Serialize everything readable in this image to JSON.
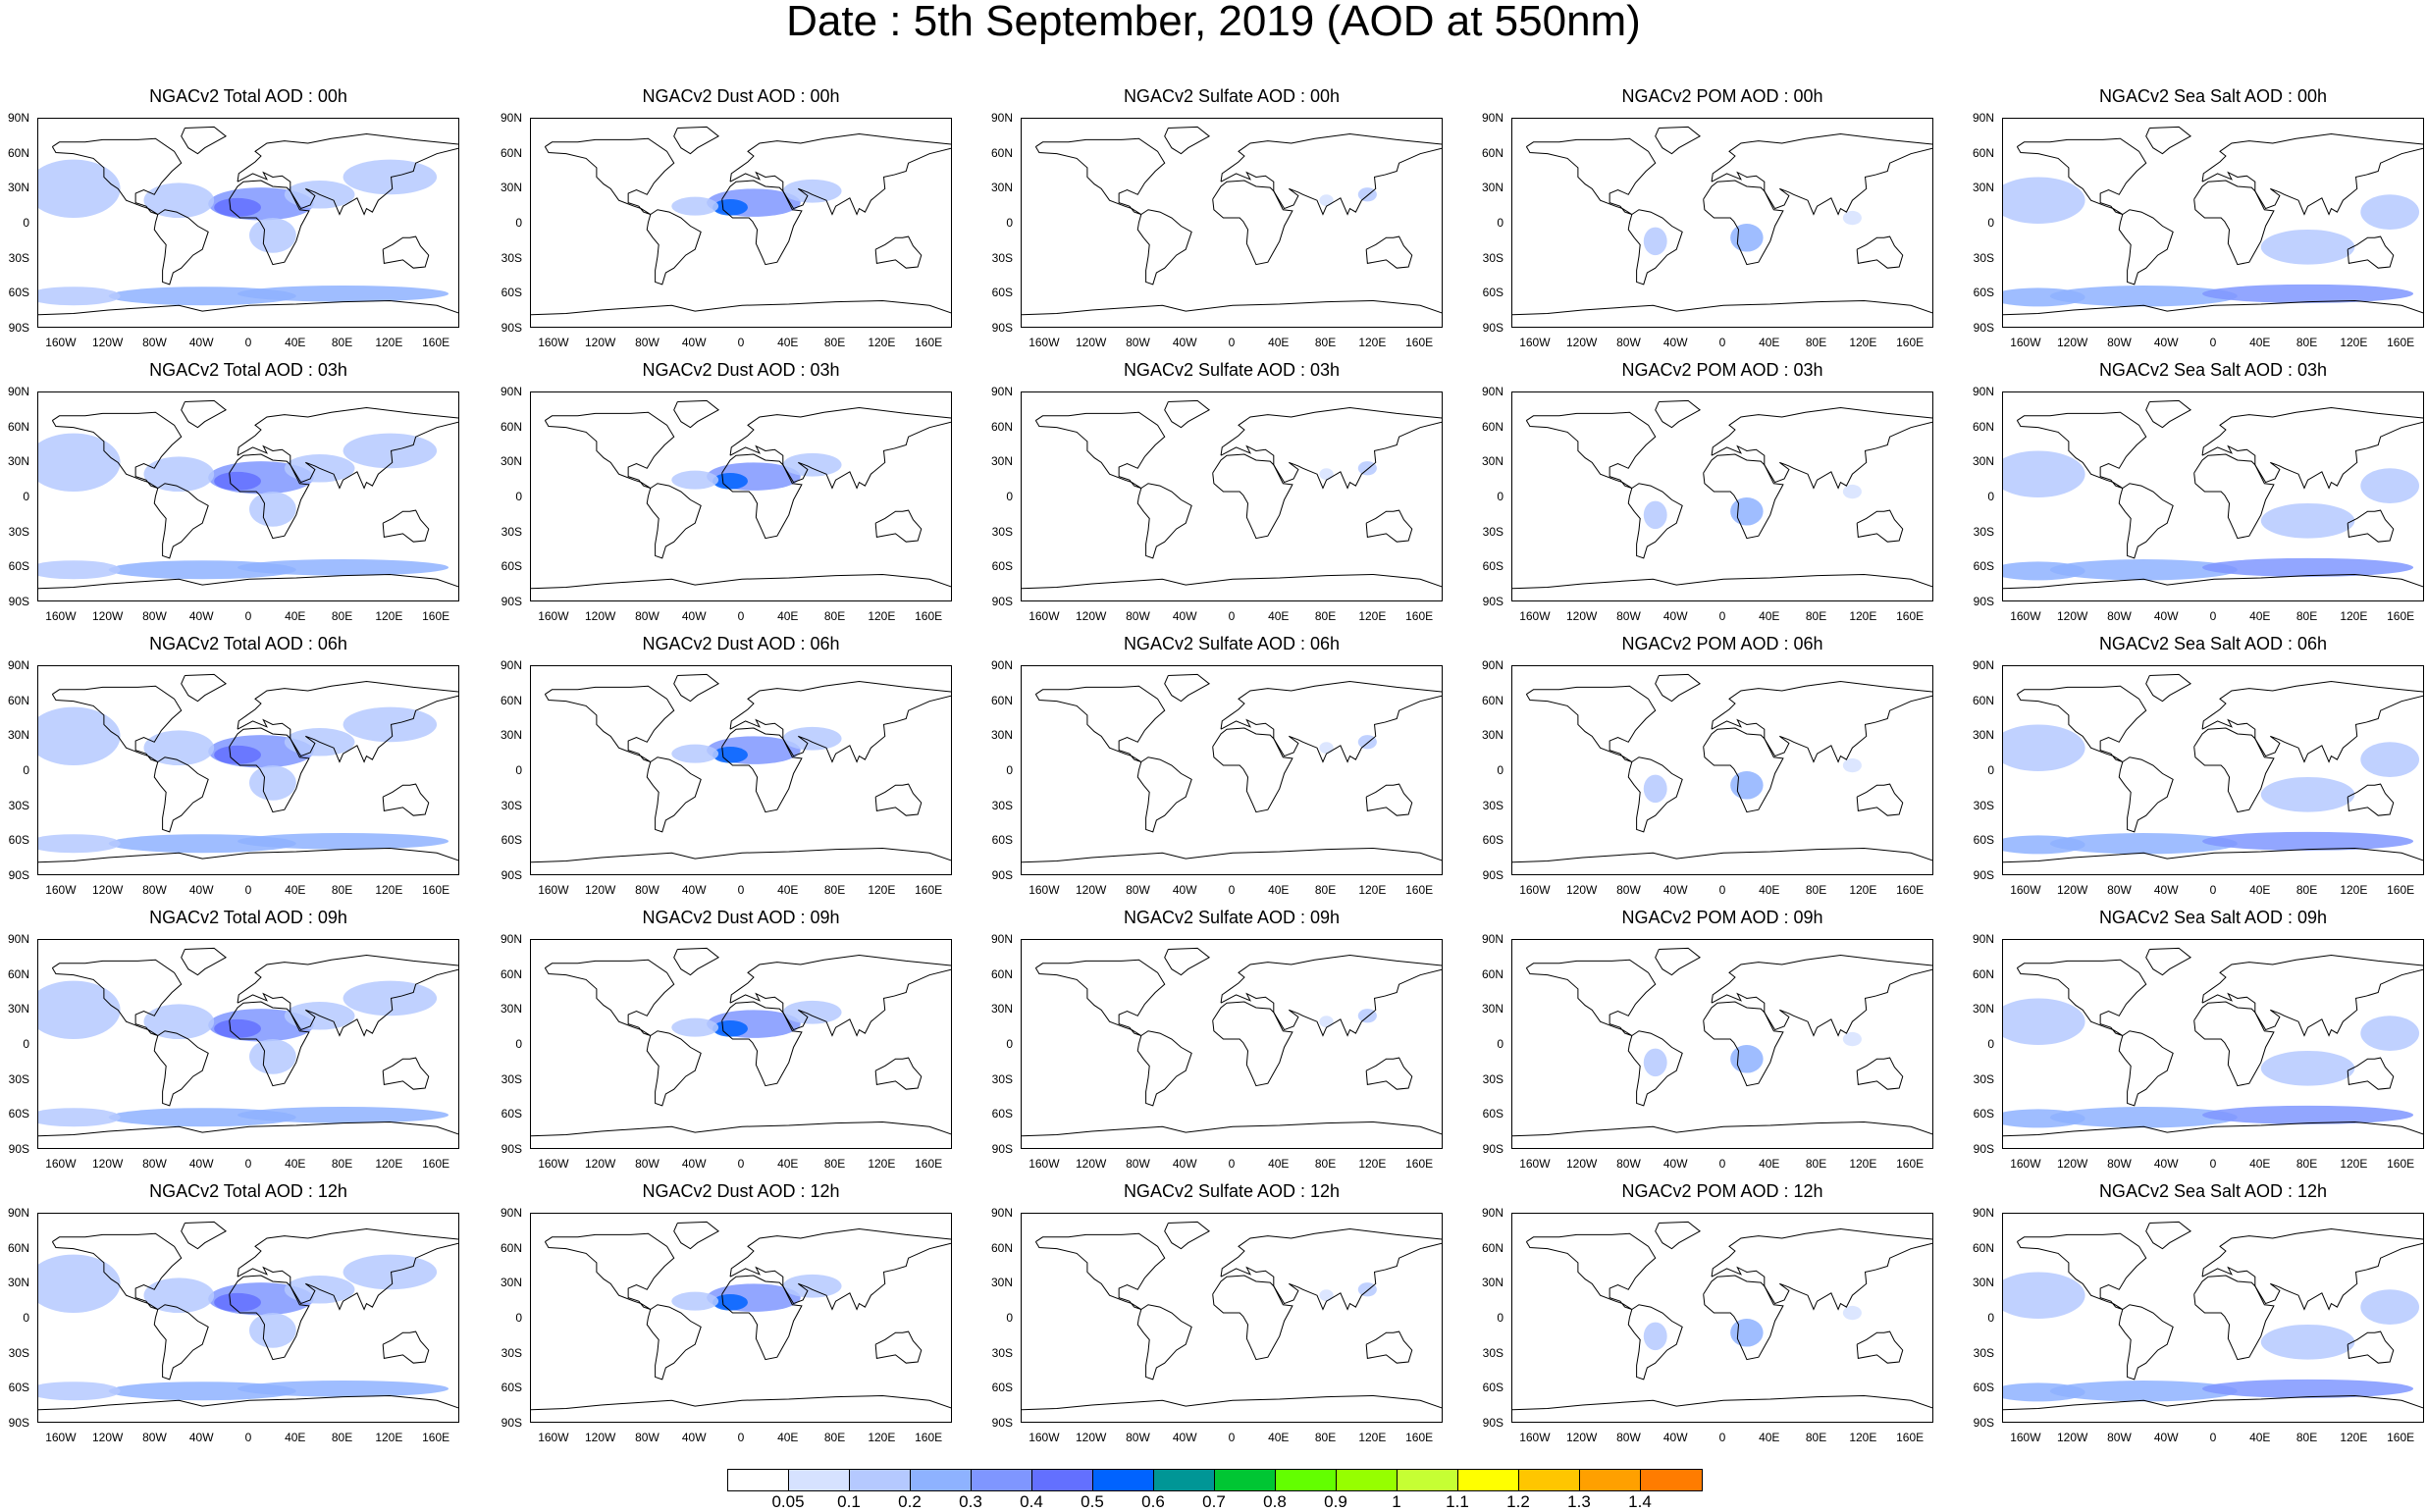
{
  "title": "Date : 5th September, 2019 (AOD at 550nm)",
  "panels": [
    [
      "NGACv2 Total AOD : 00h",
      "NGACv2 Dust AOD : 00h",
      "NGACv2 Sulfate AOD : 00h",
      "NGACv2 POM AOD : 00h",
      "NGACv2 Sea Salt AOD : 00h"
    ],
    [
      "NGACv2 Total AOD : 03h",
      "NGACv2 Dust AOD : 03h",
      "NGACv2 Sulfate AOD : 03h",
      "NGACv2 POM AOD : 03h",
      "NGACv2 Sea Salt AOD : 03h"
    ],
    [
      "NGACv2 Total AOD : 06h",
      "NGACv2 Dust AOD : 06h",
      "NGACv2 Sulfate AOD : 06h",
      "NGACv2 POM AOD : 06h",
      "NGACv2 Sea Salt AOD : 06h"
    ],
    [
      "NGACv2 Total AOD : 09h",
      "NGACv2 Dust AOD : 09h",
      "NGACv2 Sulfate AOD : 09h",
      "NGACv2 POM AOD : 09h",
      "NGACv2 Sea Salt  AOD : 09h"
    ],
    [
      "NGACv2 Total AOD  : 12h",
      "NGACv2 Dust AOD : 12h",
      "NGACv2 Sulfate AOD : 12h",
      "NGACv2 POM  AOD : 12h",
      "NGACv2 Sea Salt  AOD : 12h"
    ]
  ],
  "lat_labels": [
    "90N",
    "60N",
    "30N",
    "0",
    "30S",
    "60S",
    "90S"
  ],
  "lon_labels": [
    "160W",
    "120W",
    "80W",
    "40W",
    "0",
    "40E",
    "80E",
    "120E",
    "160E"
  ],
  "colorbar": {
    "colors": [
      "#ffffff",
      "#d6e2ff",
      "#b5c9ff",
      "#8eb2ff",
      "#7f96ff",
      "#6370ff",
      "#0063ff",
      "#009696",
      "#00c633",
      "#63ff00",
      "#96ff00",
      "#c6ff33",
      "#ffff00",
      "#ffc600",
      "#ffa000",
      "#ff7c00",
      "#ff1900"
    ],
    "labels": [
      "0.05",
      "0.1",
      "0.2",
      "0.3",
      "0.4",
      "0.5",
      "0.6",
      "0.7",
      "0.8",
      "0.9",
      "1",
      "1.1",
      "1.2",
      "1.3",
      "1.4"
    ]
  }
}
